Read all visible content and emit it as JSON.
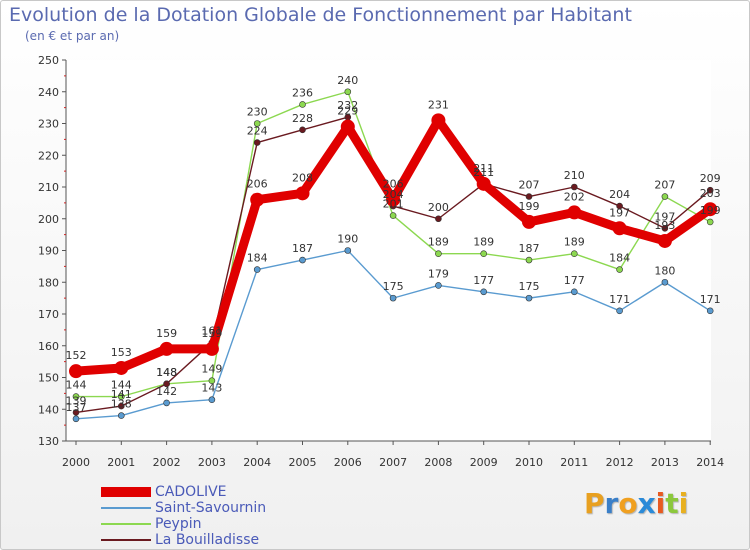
{
  "title": "Evolution de la Dotation Globale de Fonctionnement par Habitant",
  "subtitle": "(en € et par an)",
  "brand": {
    "letters": [
      "P",
      "r",
      "o",
      "x",
      "i",
      "t",
      "i"
    ],
    "colors": [
      "#e8a020",
      "#3a7fc8",
      "#f0a020",
      "#2a8ad8",
      "#e85a20",
      "#8cc83c",
      "#e8b020"
    ]
  },
  "chart_data": {
    "type": "line",
    "x": [
      "2000",
      "2001",
      "2002",
      "2003",
      "2004",
      "2005",
      "2006",
      "2007",
      "2008",
      "2009",
      "2010",
      "2011",
      "2012",
      "2013",
      "2014"
    ],
    "ylim": [
      130,
      250
    ],
    "yticks": [
      "130",
      "140",
      "150",
      "160",
      "170",
      "180",
      "190",
      "200",
      "210",
      "220",
      "230",
      "240",
      "250"
    ],
    "grid": false,
    "legend_position": "bottom-left",
    "series": [
      {
        "name": "CADOLIVE",
        "color": "#e00000",
        "values": [
          152,
          153,
          159,
          159,
          206,
          208,
          229,
          206,
          231,
          211,
          199,
          202,
          197,
          193,
          203
        ]
      },
      {
        "name": "Saint-Savournin",
        "color": "#5a9bd0",
        "values": [
          137,
          138,
          142,
          143,
          184,
          187,
          190,
          175,
          179,
          177,
          175,
          177,
          171,
          180,
          171
        ]
      },
      {
        "name": "Peypin",
        "color": "#8cd850",
        "values": [
          144,
          144,
          148,
          149,
          230,
          236,
          240,
          201,
          189,
          189,
          187,
          189,
          184,
          207,
          199
        ]
      },
      {
        "name": "La Bouilladisse",
        "color": "#6a1a20",
        "values": [
          139,
          141,
          148,
          161,
          224,
          228,
          232,
          204,
          200,
          211,
          207,
          210,
          204,
          197,
          209
        ]
      }
    ],
    "data_labels": [
      [
        "152",
        "153",
        "159",
        "159",
        "206",
        "208",
        "229",
        "206",
        "231",
        "211",
        "199",
        "202",
        "197",
        "193",
        "203"
      ],
      [
        "137",
        "138",
        "142",
        "143",
        "184",
        "187",
        "190",
        "175",
        "179",
        "177",
        "175",
        "177",
        "171",
        "180",
        "171"
      ],
      [
        "144",
        "144",
        "148",
        "149",
        "230",
        "236",
        "240",
        "201",
        "189",
        "189",
        "187",
        "189",
        "184",
        "207",
        "199"
      ],
      [
        "139",
        "141",
        "148",
        "161",
        "224",
        "228",
        "232",
        "204",
        "200",
        "211",
        "207",
        "210",
        "204",
        "197",
        "209"
      ]
    ]
  }
}
